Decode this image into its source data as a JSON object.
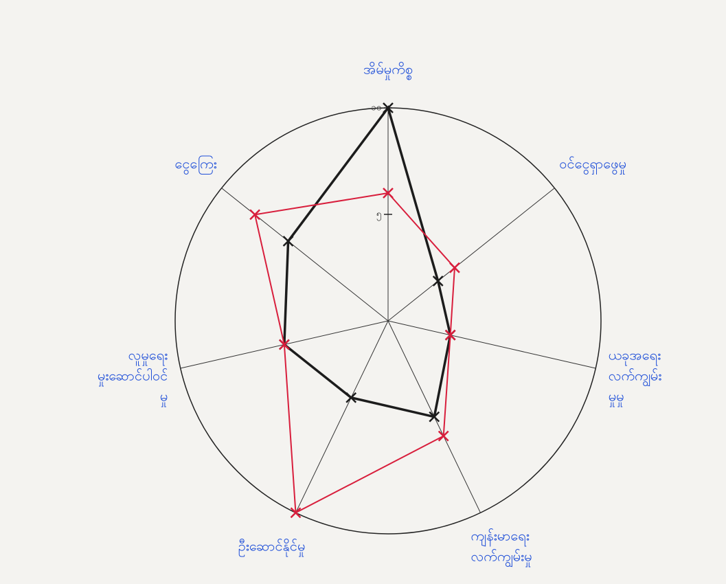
{
  "chart_data": {
    "type": "radar",
    "categories": [
      [
        "အိမ်မှုကိစ္စ"
      ],
      [
        "ဝင်ငွေရှာဖွေမှု"
      ],
      [
        "ယခုအရေး",
        "လက်ကျွမ်း",
        "မှုမှု"
      ],
      [
        "ကျန်းမာရေး",
        "လက်ကျွမ်းမှု"
      ],
      [
        "ဦးဆောင်နိုင်မှု"
      ],
      [
        "လူမှုရေး",
        "မှုးဆောင်ပါဝင်",
        "မှု"
      ],
      [
        "ငွေကြေး"
      ]
    ],
    "series": [
      {
        "color": "#1c1c1c",
        "values": [
          10,
          3,
          3,
          5,
          4,
          5,
          6
        ]
      },
      {
        "color": "#d81e3c",
        "values": [
          6,
          4,
          3,
          6,
          10,
          5,
          8
        ]
      }
    ],
    "rlim": [
      0,
      10
    ],
    "rticks": [
      {
        "value": 5,
        "label": "၅"
      },
      {
        "value": 10,
        "label": "၁၀"
      }
    ],
    "label_color": "#1f4fd8"
  }
}
